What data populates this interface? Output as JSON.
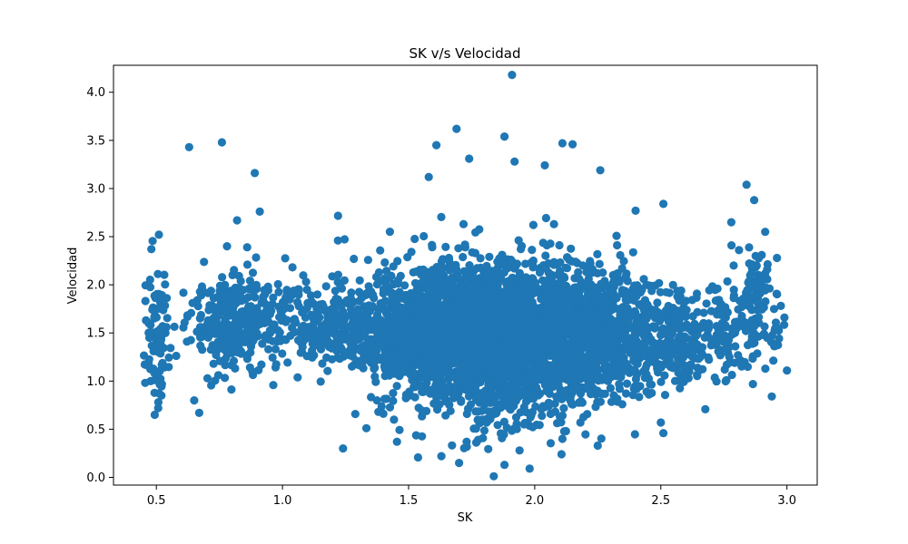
{
  "chart_data": {
    "type": "scatter",
    "title": "SK v/s Velocidad",
    "xlabel": "SK",
    "ylabel": "Velocidad",
    "xlim": [
      0.33,
      3.12
    ],
    "ylim": [
      -0.08,
      4.28
    ],
    "x_ticks": [
      "0.5",
      "1.0",
      "1.5",
      "2.0",
      "2.5",
      "3.0"
    ],
    "y_ticks": [
      "0.0",
      "0.5",
      "1.0",
      "1.5",
      "2.0",
      "2.5",
      "3.0",
      "3.5",
      "4.0"
    ],
    "grid": false,
    "legend": "none",
    "marker_color": "#1f77b4",
    "points": [
      [
        1.91,
        4.18
      ],
      [
        0.63,
        3.43
      ],
      [
        0.76,
        3.48
      ],
      [
        1.69,
        3.62
      ],
      [
        1.88,
        3.54
      ],
      [
        1.61,
        3.45
      ],
      [
        2.11,
        3.47
      ],
      [
        2.15,
        3.46
      ],
      [
        0.89,
        3.16
      ],
      [
        2.84,
        3.04
      ],
      [
        2.87,
        2.88
      ],
      [
        0.51,
        2.52
      ],
      [
        0.48,
        2.37
      ],
      [
        0.91,
        2.76
      ],
      [
        0.82,
        2.67
      ],
      [
        1.22,
        2.46
      ],
      [
        1.24,
        0.3
      ],
      [
        1.7,
        0.15
      ],
      [
        1.88,
        0.13
      ],
      [
        1.98,
        0.09
      ],
      [
        2.25,
        0.33
      ],
      [
        2.94,
        0.84
      ],
      [
        3.0,
        1.11
      ],
      [
        2.99,
        1.66
      ],
      [
        0.47,
        1.6
      ],
      [
        0.52,
        0.85
      ],
      [
        0.67,
        0.67
      ],
      [
        0.65,
        0.8
      ],
      [
        1.4,
        0.66
      ],
      [
        1.38,
        0.68
      ],
      [
        2.61,
        1.03
      ],
      [
        2.76,
        1.01
      ],
      [
        2.51,
        2.84
      ],
      [
        2.4,
        2.77
      ],
      [
        2.26,
        3.19
      ],
      [
        1.74,
        3.31
      ],
      [
        1.92,
        3.28
      ],
      [
        1.58,
        3.12
      ],
      [
        2.04,
        3.24
      ],
      [
        0.86,
        2.39
      ],
      [
        0.78,
        2.4
      ],
      [
        2.81,
        2.36
      ],
      [
        2.78,
        2.41
      ],
      [
        2.9,
        2.31
      ],
      [
        2.5,
        0.57
      ],
      [
        2.51,
        0.46
      ],
      [
        1.63,
        0.22
      ],
      [
        1.94,
        0.28
      ],
      [
        1.73,
        0.37
      ],
      [
        2.11,
        0.4
      ]
    ]
  }
}
